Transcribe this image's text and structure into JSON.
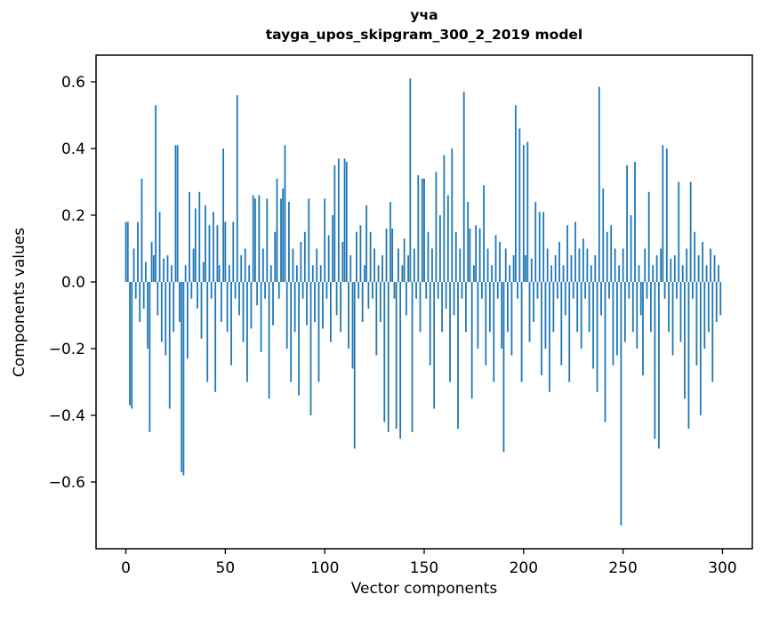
{
  "chart_data": {
    "type": "bar",
    "title_line1": "уча",
    "title_line2": "tayga_upos_skipgram_300_2_2019 model",
    "xlabel": "Vector components",
    "ylabel": "Components values",
    "xlim": [
      -15,
      315
    ],
    "ylim": [
      -0.8,
      0.68
    ],
    "x_ticks": [
      0,
      50,
      100,
      150,
      200,
      250,
      300
    ],
    "x_tick_labels": [
      "0",
      "50",
      "100",
      "150",
      "200",
      "250",
      "300"
    ],
    "y_ticks": [
      -0.6,
      -0.4,
      -0.2,
      0.0,
      0.2,
      0.4,
      0.6
    ],
    "y_tick_labels": [
      "−0.6",
      "−0.4",
      "−0.2",
      "0.0",
      "0.2",
      "0.4",
      "0.6"
    ],
    "bar_color": "#1f77b4",
    "bar_width": 0.8,
    "values": [
      0.18,
      0.18,
      -0.37,
      -0.38,
      0.1,
      -0.05,
      0.18,
      -0.12,
      0.31,
      -0.08,
      0.06,
      -0.2,
      -0.45,
      0.12,
      0.08,
      0.53,
      -0.1,
      0.21,
      -0.18,
      0.07,
      -0.22,
      0.08,
      -0.38,
      0.05,
      -0.15,
      0.41,
      0.41,
      -0.12,
      -0.57,
      -0.58,
      0.05,
      -0.23,
      0.27,
      -0.05,
      0.1,
      0.22,
      -0.08,
      0.27,
      -0.17,
      0.06,
      0.23,
      -0.3,
      0.17,
      -0.05,
      0.21,
      -0.33,
      0.17,
      0.05,
      -0.12,
      0.4,
      0.18,
      -0.15,
      0.05,
      -0.25,
      0.18,
      -0.05,
      0.56,
      -0.1,
      0.08,
      -0.18,
      0.1,
      -0.3,
      0.05,
      -0.14,
      0.26,
      0.25,
      -0.07,
      0.26,
      -0.21,
      0.1,
      -0.05,
      0.25,
      -0.35,
      0.05,
      -0.13,
      0.15,
      0.31,
      -0.05,
      0.25,
      0.28,
      0.41,
      -0.2,
      0.24,
      -0.3,
      0.1,
      -0.15,
      0.05,
      -0.34,
      0.12,
      -0.05,
      0.15,
      -0.13,
      0.25,
      -0.4,
      0.05,
      -0.12,
      0.1,
      -0.3,
      0.05,
      -0.14,
      0.25,
      -0.05,
      0.14,
      -0.18,
      0.2,
      0.35,
      -0.1,
      0.37,
      -0.15,
      0.12,
      0.37,
      0.36,
      -0.2,
      0.08,
      -0.26,
      -0.5,
      0.15,
      -0.05,
      0.17,
      -0.12,
      0.05,
      0.23,
      -0.08,
      0.15,
      -0.05,
      0.1,
      -0.22,
      0.05,
      -0.12,
      0.08,
      -0.42,
      0.16,
      -0.45,
      0.24,
      0.16,
      -0.05,
      -0.44,
      0.1,
      -0.47,
      0.05,
      0.13,
      -0.1,
      0.08,
      0.61,
      -0.45,
      0.1,
      -0.05,
      0.32,
      -0.15,
      0.31,
      0.31,
      -0.05,
      0.15,
      -0.25,
      0.1,
      -0.38,
      0.33,
      -0.05,
      0.2,
      -0.15,
      0.38,
      -0.08,
      0.26,
      -0.3,
      0.4,
      -0.1,
      0.15,
      -0.44,
      0.1,
      -0.05,
      0.57,
      -0.15,
      0.24,
      0.16,
      -0.35,
      0.05,
      0.17,
      -0.2,
      0.16,
      -0.05,
      0.29,
      -0.25,
      0.1,
      -0.15,
      0.05,
      -0.3,
      0.14,
      -0.05,
      0.12,
      -0.2,
      -0.51,
      0.1,
      -0.15,
      0.05,
      -0.22,
      0.08,
      0.53,
      -0.05,
      0.46,
      -0.3,
      0.41,
      0.08,
      0.42,
      -0.18,
      0.07,
      -0.12,
      0.24,
      -0.05,
      0.21,
      -0.28,
      0.21,
      -0.2,
      0.1,
      -0.33,
      0.05,
      -0.15,
      0.08,
      -0.05,
      0.12,
      -0.25,
      0.05,
      -0.1,
      0.17,
      -0.3,
      0.08,
      -0.05,
      0.18,
      -0.15,
      0.1,
      -0.2,
      0.13,
      -0.05,
      0.1,
      -0.15,
      0.05,
      -0.26,
      0.08,
      -0.33,
      0.585,
      -0.1,
      0.28,
      -0.42,
      0.15,
      -0.05,
      0.17,
      -0.25,
      0.1,
      -0.22,
      0.05,
      -0.73,
      0.1,
      -0.18,
      0.35,
      -0.05,
      0.2,
      -0.15,
      0.36,
      -0.2,
      0.05,
      -0.1,
      -0.28,
      0.1,
      -0.05,
      0.27,
      -0.15,
      0.05,
      -0.47,
      0.08,
      -0.5,
      0.1,
      0.41,
      -0.05,
      0.4,
      -0.15,
      0.07,
      -0.22,
      0.08,
      -0.05,
      0.3,
      -0.18,
      0.05,
      -0.35,
      0.1,
      -0.44,
      0.3,
      -0.05,
      0.15,
      -0.25,
      0.08,
      -0.4,
      0.12,
      -0.2,
      0.05,
      -0.15,
      0.1,
      -0.3,
      0.08,
      -0.12,
      0.05,
      -0.1
    ]
  }
}
